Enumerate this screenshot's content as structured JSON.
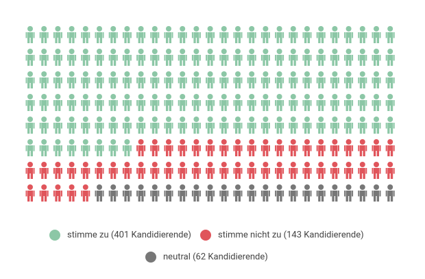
{
  "chart_data": {
    "type": "pictogram",
    "series": [
      {
        "name": "stimme zu (401 Kandidierende)",
        "color": "#8cc7a6",
        "values": [
          401
        ]
      },
      {
        "name": "stimme nicht zu (143 Kandidierende)",
        "color": "#e0555b",
        "values": [
          143
        ]
      },
      {
        "name": "neutral (62 Kandidierende)",
        "color": "#777777",
        "values": [
          62
        ]
      }
    ]
  }
}
